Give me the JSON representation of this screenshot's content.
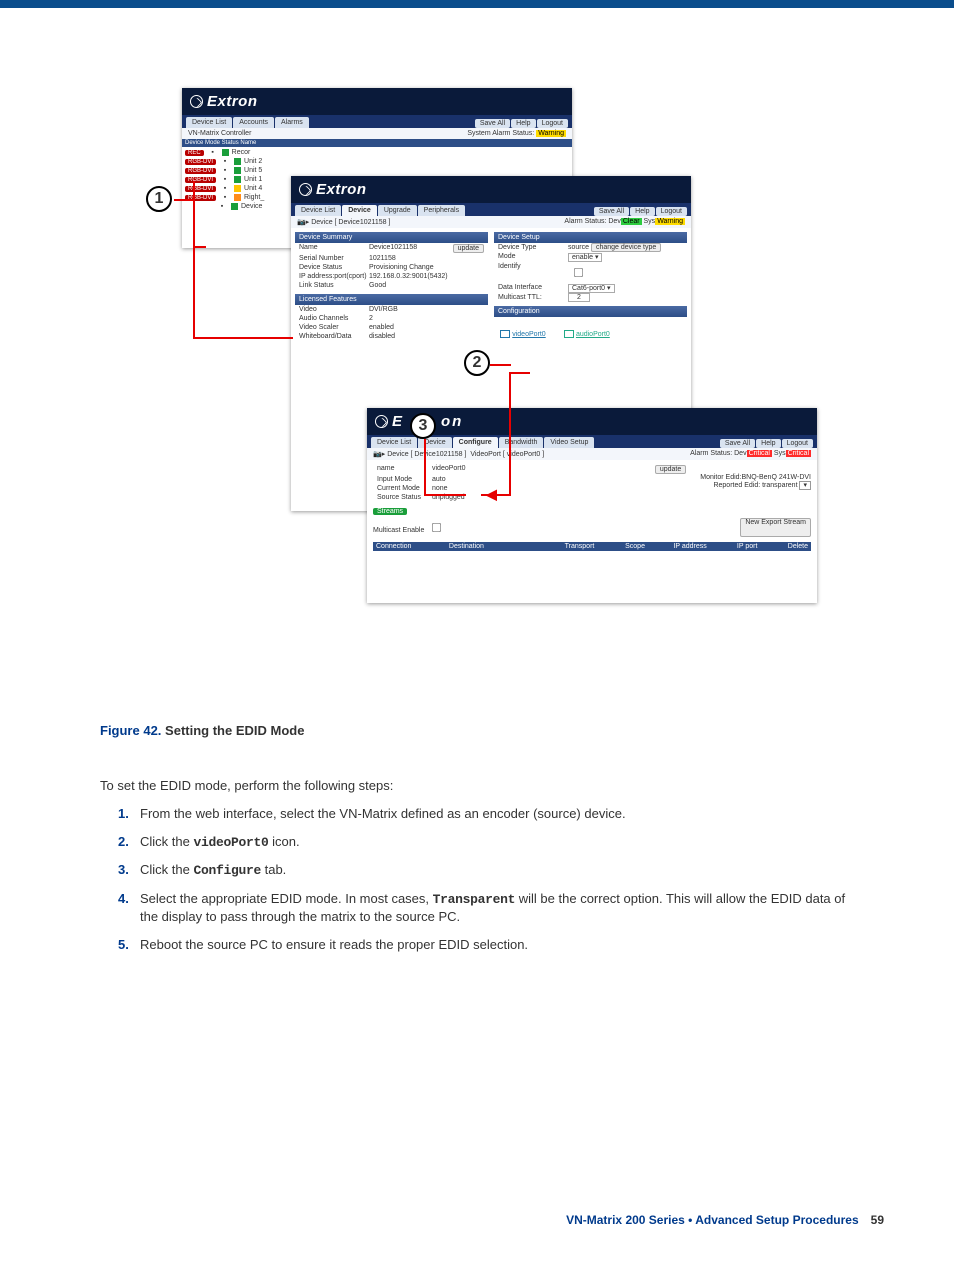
{
  "brand": "Extron",
  "win1": {
    "tabs": [
      "Device List",
      "Accounts",
      "Alarms"
    ],
    "actions": [
      "Save All",
      "Help",
      "Logout"
    ],
    "subL": "VN-Matrix Controller",
    "subR_label": "System Alarm Status:",
    "subR_status": "Warning",
    "columns": "Device   Mode   Status   Name",
    "rows": [
      {
        "pill": "REC",
        "sq": "sq-b",
        "name": "Recor"
      },
      {
        "pill": "RGB-DVI",
        "sq": "sq-b",
        "name": "Unit 2"
      },
      {
        "pill": "RGB-DVI",
        "sq": "sq-b",
        "name": "Unit 5"
      },
      {
        "pill": "RGB-DVI",
        "sq": "sq-b",
        "name": "Unit 1"
      },
      {
        "pill": "RGB-DVI",
        "sq": "sq-y",
        "name": "Unit 4"
      },
      {
        "pill": "RGB-DVI",
        "sq": "sq-o",
        "name": "Right_"
      },
      {
        "pill": "",
        "sq": "sq-b",
        "name": "Device"
      }
    ]
  },
  "win2": {
    "tabs": [
      "Device List",
      "Device",
      "Upgrade",
      "Peripherals"
    ],
    "active": "Device",
    "actions": [
      "Save All",
      "Help",
      "Logout"
    ],
    "crumb": "Device [ Device1021158 ]",
    "alarmL": "Alarm Status: Dev",
    "alarm1": "Clear",
    "alarmM": " Sys",
    "alarm2": "Warning",
    "sec1": "Device Summary",
    "kv1": [
      {
        "k": "Name",
        "v": "Device1021158",
        "btn": "update"
      },
      {
        "k": "Serial Number",
        "v": "1021158"
      },
      {
        "k": "Device Status",
        "v": "Provisioning Change"
      },
      {
        "k": "IP address:port(cport)",
        "v": "192.168.0.32:9001(5432)"
      },
      {
        "k": "Link Status",
        "v": "Good"
      }
    ],
    "sec2": "Licensed Features",
    "kv2": [
      {
        "k": "Video",
        "v": "DVI/RGB"
      },
      {
        "k": "Audio Channels",
        "v": "2"
      },
      {
        "k": "Video Scaler",
        "v": "enabled"
      },
      {
        "k": "Whiteboard/Data",
        "v": "disabled"
      }
    ],
    "sec3": "Device Setup",
    "ds": [
      {
        "k": "Device Type",
        "type": "btn",
        "v": "change device type",
        "pre": "source"
      },
      {
        "k": "Mode",
        "type": "sel",
        "v": "enable"
      },
      {
        "k": "Identify",
        "type": "chk"
      },
      {
        "k": "Data Interface",
        "type": "sel",
        "v": "Cat6-port0"
      },
      {
        "k": "Multicast TTL:",
        "type": "txt",
        "v": "2"
      }
    ],
    "sec4": "Configuration",
    "cfgA": "videoPort0",
    "cfgB": "audioPort0"
  },
  "win3": {
    "brand_tail": "on",
    "tabs": [
      "Device List",
      "Device",
      "Configure",
      "Bandwidth",
      "Video Setup"
    ],
    "active": "Configure",
    "actions": [
      "Save All",
      "Help",
      "Logout"
    ],
    "crumbA": "Device [ Device1021158 ]",
    "crumbB": "VideoPort [ videoPort0 ]",
    "alarmL": "Alarm Status: Dev",
    "alarm1": "Critical",
    "alarmM": " Sys",
    "alarm2": "Critical",
    "kv": [
      {
        "k": "name",
        "v": "videoPort0",
        "btn": "update"
      },
      {
        "k": "Input Mode",
        "v": "auto"
      },
      {
        "k": "Current Mode",
        "v": "none"
      },
      {
        "k": "Source Status",
        "v": "unplugged"
      }
    ],
    "rtop": "Monitor Edid:BNQ-BenQ 241W-DVI",
    "rbot": "Reported Edid: transparent",
    "streams": "Streams",
    "mcast": "Multicast Enable",
    "newexp": "New Export Stream",
    "cols": [
      "Connection",
      "Destination",
      "Transport",
      "Scope",
      "IP address",
      "IP port",
      "Delete"
    ]
  },
  "figure_ref": "Figure 42.",
  "figure_title": "Setting the EDID Mode",
  "intro": "To set the EDID mode, perform the following steps:",
  "steps": [
    {
      "n": "1.",
      "html": "From the web interface, select the VN-Matrix defined as an encoder (source) device."
    },
    {
      "n": "2.",
      "html": "Click the <span class=\"mono\">videoPort0</span> icon."
    },
    {
      "n": "3.",
      "html": "Click the <span class=\"mono\">Configure</span> tab."
    },
    {
      "n": "4.",
      "html": "Select the appropriate EDID mode. In most cases, <span class=\"mono\">Transparent</span> will be the correct option. This will allow the EDID data of the display to pass through the matrix to the source PC."
    },
    {
      "n": "5.",
      "html": "Reboot the source PC to ensure it reads the proper EDID selection."
    }
  ],
  "footer_title": "VN-Matrix 200 Series  •  Advanced Setup Procedures",
  "footer_page": "59"
}
